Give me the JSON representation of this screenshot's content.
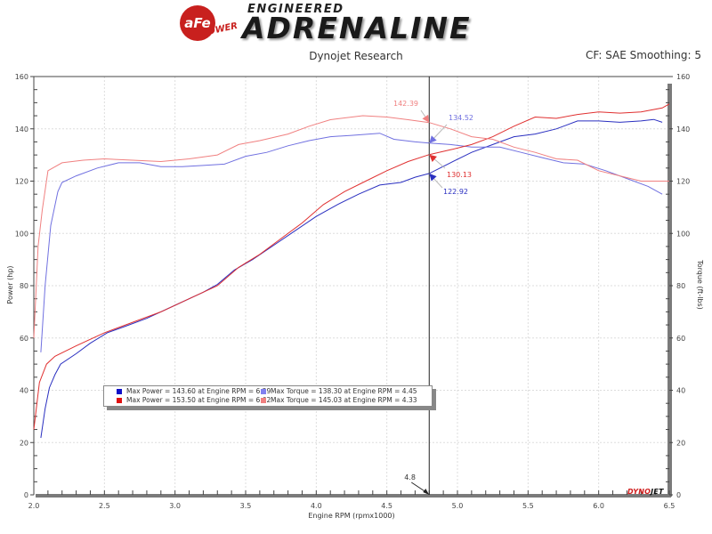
{
  "header": {
    "brand_badge": "aFe",
    "brand_sub": "POWER",
    "tagline_top": "ENGINEERED",
    "tagline_main": "ADRENALINE",
    "subtitle": "Dynojet Research",
    "cf_text": "CF: SAE Smoothing: 5"
  },
  "footer_logo": {
    "part1": "DYNO",
    "part2": "JET"
  },
  "colors": {
    "power_blue": "#2a2fc0",
    "torque_blue": "#7070e0",
    "power_red": "#e03030",
    "torque_red": "#f08080",
    "cursor": "#222222",
    "grid": "#d8d8d8"
  },
  "cursor_label": "4.8",
  "annotations": [
    {
      "label": "142.39",
      "series": "Torque (red run)",
      "color": "#f08080"
    },
    {
      "label": "134.52",
      "series": "Torque (blue run)",
      "color": "#7070e0"
    },
    {
      "label": "130.13",
      "series": "Power (red run)",
      "color": "#e03030"
    },
    {
      "label": "122.92",
      "series": "Power (blue run)",
      "color": "#2a2fc0"
    }
  ],
  "legend": {
    "items": [
      {
        "text": "Max Power = 143.60 at Engine RPM = 6.39",
        "color": "#1010c8"
      },
      {
        "text": "Max Torque = 138.30 at Engine RPM = 4.45",
        "color": "#8080f0"
      },
      {
        "text": "Max Power = 153.50 at Engine RPM = 6.62",
        "color": "#e01010"
      },
      {
        "text": "Max Torque = 145.03 at Engine RPM = 4.33",
        "color": "#f08080"
      }
    ]
  },
  "chart_data": {
    "type": "line",
    "title": "Dynojet Research",
    "subtitle": "CF: SAE Smoothing: 5",
    "xlabel": "Engine RPM (rpmx1000)",
    "ylabel": "Power (hp)",
    "y2label": "Torque (ft-lbs)",
    "xlim": [
      2.0,
      6.5
    ],
    "ylim": [
      0,
      160
    ],
    "y2lim": [
      0,
      160
    ],
    "x_ticks": [
      "2.0",
      "2.5",
      "3.0",
      "3.5",
      "4.0",
      "4.5",
      "5.0",
      "5.5",
      "6.0",
      "6.5"
    ],
    "y_ticks": [
      "0",
      "20",
      "40",
      "60",
      "80",
      "100",
      "120",
      "140",
      "160"
    ],
    "y2_ticks": [
      "0",
      "20",
      "40",
      "60",
      "80",
      "100",
      "120",
      "140",
      "160"
    ],
    "grid": true,
    "legend_position": "inside-lower-left",
    "cursor_rpm": 4.8,
    "series": [
      {
        "name": "Power (blue run)",
        "axis": "left",
        "color": "#2a2fc0",
        "points": [
          [
            2.05,
            21.8
          ],
          [
            2.08,
            33
          ],
          [
            2.11,
            41
          ],
          [
            2.15,
            46
          ],
          [
            2.19,
            50
          ],
          [
            2.3,
            54
          ],
          [
            2.4,
            58
          ],
          [
            2.52,
            62
          ],
          [
            2.65,
            64.5
          ],
          [
            2.8,
            67.5
          ],
          [
            3.0,
            72.5
          ],
          [
            3.2,
            77.5
          ],
          [
            3.3,
            80.5
          ],
          [
            3.42,
            86
          ],
          [
            3.55,
            90
          ],
          [
            3.7,
            95.5
          ],
          [
            3.85,
            101
          ],
          [
            4.0,
            106.5
          ],
          [
            4.15,
            111
          ],
          [
            4.3,
            115
          ],
          [
            4.45,
            118.5
          ],
          [
            4.6,
            119.5
          ],
          [
            4.7,
            121.5
          ],
          [
            4.8,
            122.92
          ],
          [
            4.95,
            127
          ],
          [
            5.1,
            131
          ],
          [
            5.25,
            134
          ],
          [
            5.4,
            137
          ],
          [
            5.55,
            138
          ],
          [
            5.7,
            140
          ],
          [
            5.85,
            143
          ],
          [
            6.0,
            143
          ],
          [
            6.15,
            142.5
          ],
          [
            6.3,
            143
          ],
          [
            6.39,
            143.6
          ],
          [
            6.45,
            142.5
          ]
        ]
      },
      {
        "name": "Torque (blue run)",
        "axis": "right",
        "color": "#7070e0",
        "points": [
          [
            2.05,
            54.5
          ],
          [
            2.08,
            80
          ],
          [
            2.12,
            103
          ],
          [
            2.17,
            116
          ],
          [
            2.2,
            119.5
          ],
          [
            2.3,
            122
          ],
          [
            2.45,
            125
          ],
          [
            2.6,
            127
          ],
          [
            2.75,
            127
          ],
          [
            2.9,
            125.5
          ],
          [
            3.05,
            125.5
          ],
          [
            3.2,
            126
          ],
          [
            3.35,
            126.5
          ],
          [
            3.5,
            129.5
          ],
          [
            3.65,
            131
          ],
          [
            3.8,
            133.5
          ],
          [
            3.95,
            135.5
          ],
          [
            4.1,
            137
          ],
          [
            4.25,
            137.5
          ],
          [
            4.45,
            138.3
          ],
          [
            4.55,
            136
          ],
          [
            4.7,
            135
          ],
          [
            4.8,
            134.52
          ],
          [
            4.95,
            134
          ],
          [
            5.1,
            133
          ],
          [
            5.3,
            133
          ],
          [
            5.45,
            131
          ],
          [
            5.6,
            129
          ],
          [
            5.75,
            127
          ],
          [
            5.9,
            126.5
          ],
          [
            6.05,
            124
          ],
          [
            6.2,
            121
          ],
          [
            6.35,
            118
          ],
          [
            6.45,
            115
          ]
        ]
      },
      {
        "name": "Power (red run)",
        "axis": "left",
        "color": "#e03030",
        "points": [
          [
            2.0,
            25
          ],
          [
            2.04,
            43
          ],
          [
            2.09,
            50
          ],
          [
            2.15,
            53
          ],
          [
            2.3,
            57
          ],
          [
            2.5,
            62
          ],
          [
            2.7,
            66
          ],
          [
            2.9,
            70
          ],
          [
            3.1,
            75
          ],
          [
            3.3,
            80
          ],
          [
            3.45,
            87
          ],
          [
            3.6,
            92
          ],
          [
            3.75,
            98
          ],
          [
            3.9,
            104
          ],
          [
            4.05,
            111
          ],
          [
            4.2,
            116
          ],
          [
            4.35,
            120
          ],
          [
            4.5,
            124
          ],
          [
            4.65,
            127.5
          ],
          [
            4.8,
            130.13
          ],
          [
            4.95,
            132
          ],
          [
            5.1,
            134
          ],
          [
            5.25,
            137
          ],
          [
            5.4,
            141
          ],
          [
            5.55,
            144.5
          ],
          [
            5.7,
            144
          ],
          [
            5.85,
            145.5
          ],
          [
            6.0,
            146.5
          ],
          [
            6.15,
            146
          ],
          [
            6.3,
            146.5
          ],
          [
            6.45,
            148
          ],
          [
            6.5,
            149.5
          ]
        ]
      },
      {
        "name": "Torque (red run)",
        "axis": "right",
        "color": "#f08080",
        "points": [
          [
            2.0,
            60
          ],
          [
            2.03,
            95
          ],
          [
            2.06,
            109
          ],
          [
            2.1,
            124
          ],
          [
            2.2,
            127
          ],
          [
            2.35,
            128
          ],
          [
            2.5,
            128.5
          ],
          [
            2.7,
            128
          ],
          [
            2.9,
            127.5
          ],
          [
            3.1,
            128.5
          ],
          [
            3.3,
            130
          ],
          [
            3.45,
            134
          ],
          [
            3.6,
            135.5
          ],
          [
            3.8,
            138
          ],
          [
            3.95,
            141
          ],
          [
            4.1,
            143.5
          ],
          [
            4.33,
            145.03
          ],
          [
            4.5,
            144.5
          ],
          [
            4.65,
            143.5
          ],
          [
            4.8,
            142.39
          ],
          [
            4.95,
            140
          ],
          [
            5.1,
            137
          ],
          [
            5.25,
            136
          ],
          [
            5.4,
            133
          ],
          [
            5.55,
            131
          ],
          [
            5.7,
            128.5
          ],
          [
            5.85,
            128
          ],
          [
            6.0,
            124
          ],
          [
            6.15,
            122
          ],
          [
            6.3,
            120
          ],
          [
            6.4,
            120
          ],
          [
            6.5,
            120
          ]
        ]
      }
    ]
  }
}
